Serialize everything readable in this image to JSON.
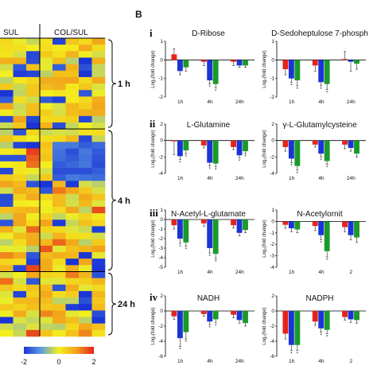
{
  "panel_label": "B",
  "heatmap": {
    "column_groups": [
      {
        "label": "SUL"
      },
      {
        "label": "COL/SUL"
      }
    ],
    "time_groups": [
      {
        "label": "1 h",
        "rows": 14
      },
      {
        "label": "4 h",
        "rows": 22
      },
      {
        "label": "24 h",
        "rows": 10
      }
    ],
    "columns": 8,
    "colorbar": {
      "ticks": [
        "-2",
        "0",
        "2"
      ],
      "min": -2,
      "max": 2,
      "colors": [
        "#1a34d6",
        "#5ea0e0",
        "#f4f01e",
        "#f2a21a",
        "#e5231b"
      ]
    }
  },
  "legend_colors": {
    "red": "#e5231b",
    "blue": "#1a34d6",
    "green": "#1a9a2a"
  },
  "ylabel_text": "Log₂(fold change)",
  "row_labels": [
    "i",
    "ii",
    "iii",
    "iv"
  ],
  "chart_data": [
    {
      "type": "bar",
      "title": "D-Ribose",
      "categories": [
        "1h",
        "4h",
        "24h"
      ],
      "series": [
        {
          "values": [
            0.3,
            -0.1,
            -0.1
          ]
        },
        {
          "values": [
            -0.6,
            -1.1,
            -0.3
          ]
        },
        {
          "values": [
            -0.4,
            -1.3,
            -0.3
          ]
        }
      ],
      "errors": [
        [
          0.3,
          0.2,
          0.2
        ],
        [
          0.2,
          0.2,
          0.1
        ],
        [
          0.2,
          0.2,
          0.1
        ]
      ],
      "sig": [
        [],
        [
          1,
          2
        ],
        []
      ],
      "ylim": [
        -2,
        1
      ],
      "ytick_step": 1
    },
    {
      "type": "bar",
      "title": "D-Sedoheptulose 7-phosph",
      "categories": [
        "1h",
        "4h",
        "24h"
      ],
      "series": [
        {
          "values": [
            -0.5,
            -0.3,
            0.05
          ]
        },
        {
          "values": [
            -1.0,
            -1.2,
            -0.1
          ]
        },
        {
          "values": [
            -1.1,
            -1.3,
            -0.2
          ]
        }
      ],
      "errors": [
        [
          0.3,
          0.3,
          0.4
        ],
        [
          0.2,
          0.2,
          0.5
        ],
        [
          0.3,
          0.3,
          0.3
        ]
      ],
      "sig": [
        [
          1,
          2
        ],
        [
          1,
          2
        ],
        []
      ],
      "ylim": [
        -2,
        1
      ],
      "ytick_step": 1
    },
    {
      "type": "bar",
      "title": "L-Glutamine",
      "categories": [
        "1h",
        "4h",
        "24h"
      ],
      "series": [
        {
          "values": [
            -0.1,
            -0.6,
            -0.8
          ]
        },
        {
          "values": [
            -1.9,
            -2.7,
            -1.8
          ]
        },
        {
          "values": [
            -1.2,
            -2.8,
            -1.3
          ]
        }
      ],
      "errors": [
        [
          1.6,
          0.3,
          0.3
        ],
        [
          0.4,
          0.4,
          0.3
        ],
        [
          0.4,
          0.4,
          0.3
        ]
      ],
      "sig": [
        [
          1,
          2
        ],
        [
          1,
          2
        ],
        [
          1,
          2
        ]
      ],
      "ylim": [
        -4,
        2
      ],
      "ytick_step": 2
    },
    {
      "type": "bar",
      "title": "γ-L-Glutamylcysteine",
      "categories": [
        "1h",
        "4h",
        "24h"
      ],
      "series": [
        {
          "values": [
            -0.8,
            -0.5,
            -0.5
          ]
        },
        {
          "values": [
            -2.2,
            -1.6,
            -0.9
          ]
        },
        {
          "values": [
            -3.1,
            -2.5,
            -1.6
          ]
        }
      ],
      "errors": [
        [
          0.5,
          0.3,
          0.5
        ],
        [
          0.5,
          0.4,
          0.4
        ],
        [
          0.5,
          0.4,
          0.4
        ]
      ],
      "sig": [
        [
          1,
          2
        ],
        [
          1,
          2
        ],
        []
      ],
      "ylim": [
        -4,
        2
      ],
      "ytick_step": 2
    },
    {
      "type": "bar",
      "title": "N-Acetyl-L-glutamate",
      "categories": [
        "1h",
        "4h",
        "24h"
      ],
      "series": [
        {
          "values": [
            -0.6,
            -0.4,
            -0.6
          ]
        },
        {
          "values": [
            -2.0,
            -3.0,
            -1.4
          ]
        },
        {
          "values": [
            -2.4,
            -3.6,
            -1.1
          ]
        }
      ],
      "errors": [
        [
          0.4,
          0.3,
          0.3
        ],
        [
          0.5,
          0.5,
          0.3
        ],
        [
          0.4,
          0.5,
          0.3
        ]
      ],
      "sig": [
        [
          1,
          2
        ],
        [
          1,
          2
        ],
        []
      ],
      "ylim": [
        -5,
        1
      ],
      "ytick_step": 1
    },
    {
      "type": "bar",
      "title": "N-Acetylornit",
      "categories": [
        "1h",
        "4h",
        "2"
      ],
      "series": [
        {
          "values": [
            -0.3,
            -0.4,
            -0.5
          ]
        },
        {
          "values": [
            -0.6,
            -1.2,
            -1.2
          ]
        },
        {
          "values": [
            -0.7,
            -2.6,
            -1.4
          ]
        }
      ],
      "errors": [
        [
          0.3,
          0.4,
          0.4
        ],
        [
          0.3,
          0.4,
          0.4
        ],
        [
          0.3,
          0.5,
          0.4
        ]
      ],
      "sig": [
        [],
        [
          1,
          2
        ],
        []
      ],
      "ylim": [
        -4,
        1
      ],
      "ytick_step": 1
    },
    {
      "type": "bar",
      "title": "NADH",
      "categories": [
        "1h",
        "4h",
        "24h"
      ],
      "series": [
        {
          "values": [
            -0.7,
            -0.4,
            -0.5
          ]
        },
        {
          "values": [
            -3.6,
            -1.4,
            -1.2
          ]
        },
        {
          "values": [
            -2.8,
            -1.1,
            -1.6
          ]
        }
      ],
      "errors": [
        [
          0.4,
          0.3,
          0.4
        ],
        [
          1.1,
          0.4,
          0.4
        ],
        [
          0.9,
          0.4,
          0.4
        ]
      ],
      "sig": [
        [
          1,
          2
        ],
        [
          1,
          2
        ],
        []
      ],
      "ylim": [
        -6,
        2
      ],
      "ytick_step": 2
    },
    {
      "type": "bar",
      "title": "NADPH",
      "categories": [
        "1h",
        "4h",
        "2"
      ],
      "series": [
        {
          "values": [
            -3.0,
            -1.4,
            -0.8
          ]
        },
        {
          "values": [
            -4.5,
            -2.3,
            -1.1
          ]
        },
        {
          "values": [
            -4.5,
            -2.5,
            -1.2
          ]
        }
      ],
      "errors": [
        [
          0.7,
          0.5,
          0.4
        ],
        [
          0.7,
          0.5,
          0.4
        ],
        [
          0.7,
          0.5,
          0.4
        ]
      ],
      "sig": [
        [
          1,
          2
        ],
        [
          1,
          2
        ],
        []
      ],
      "ylim": [
        -6,
        2
      ],
      "ytick_step": 2
    }
  ]
}
